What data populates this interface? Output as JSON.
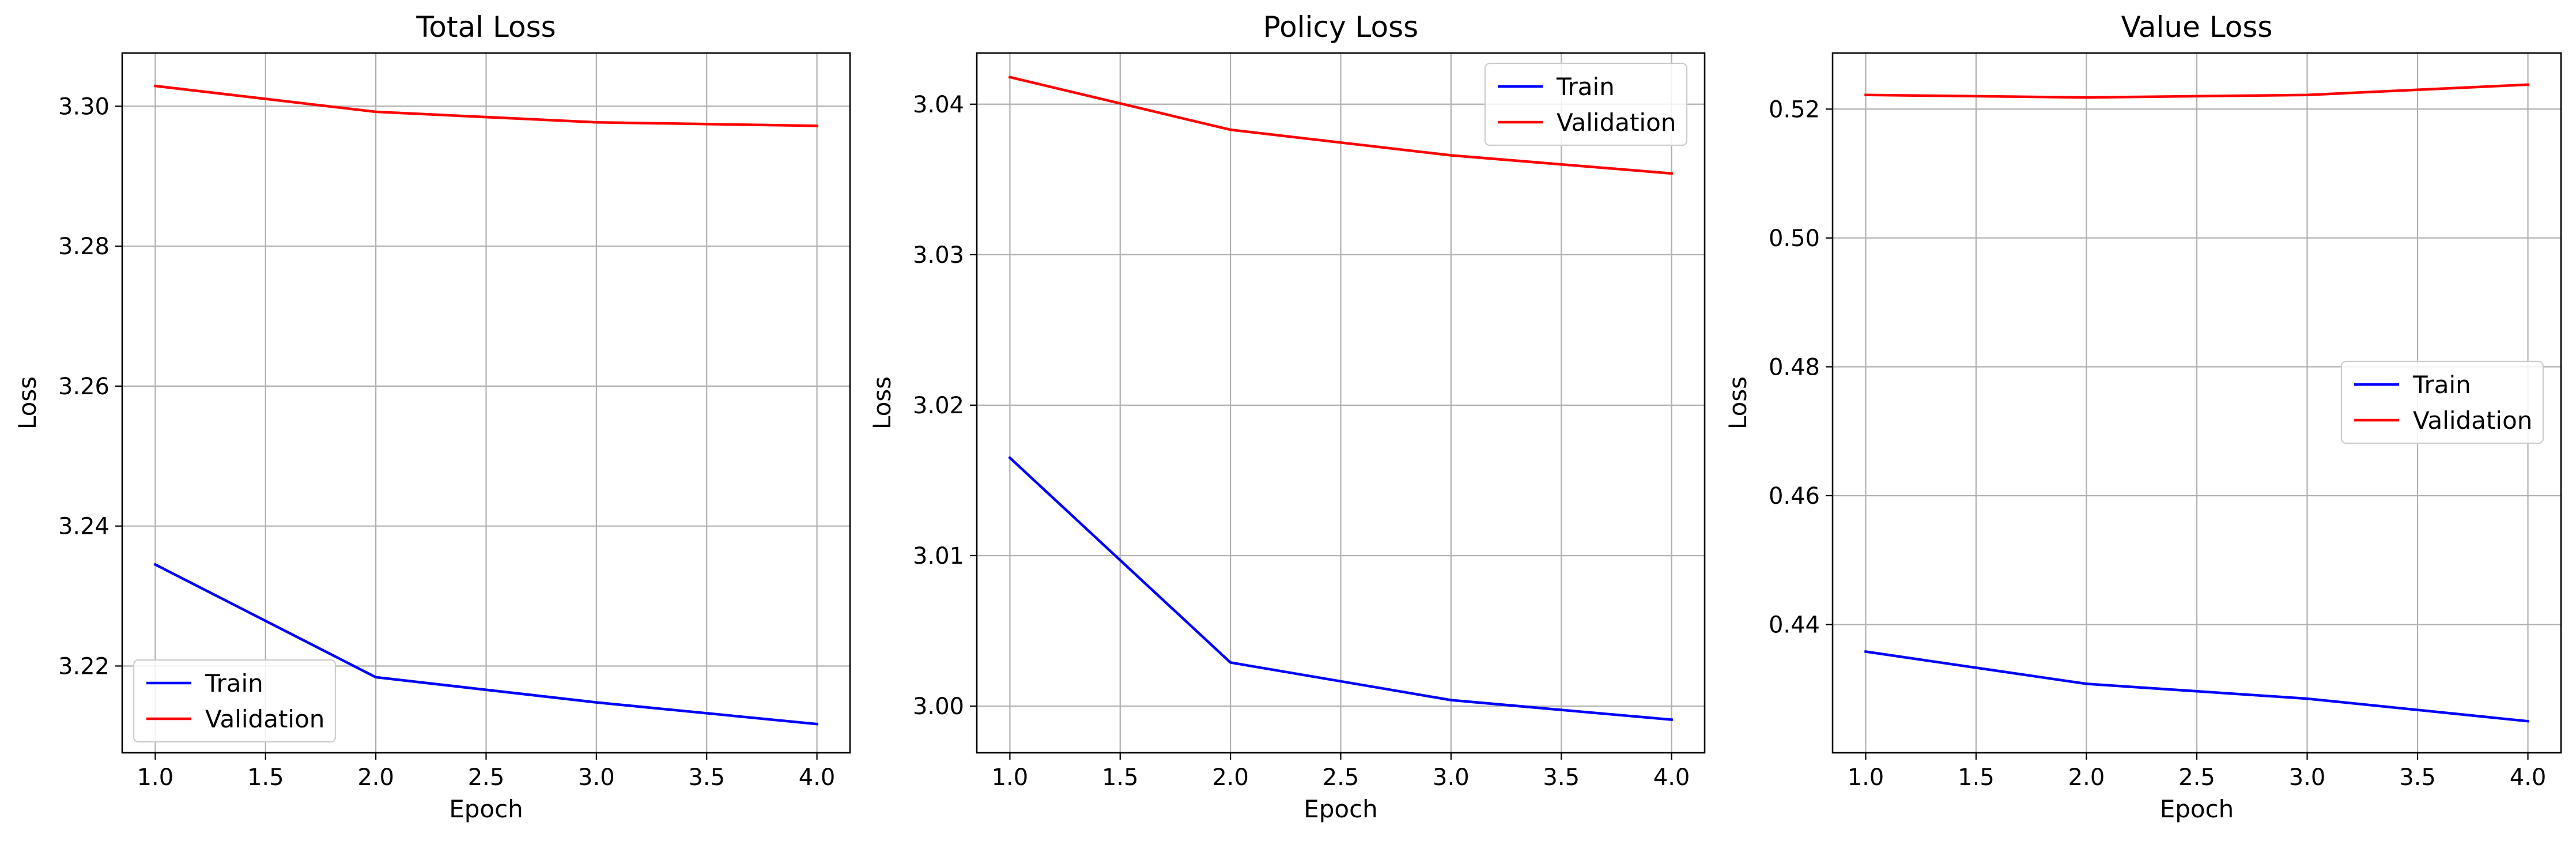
{
  "colors": {
    "train": "#0000ff",
    "validation": "#ff0000",
    "grid": "#b0b0b0",
    "axes": "#000000"
  },
  "chart_data": [
    {
      "type": "line",
      "title": "Total Loss",
      "xlabel": "Epoch",
      "ylabel": "Loss",
      "xlim": [
        0.85,
        4.15
      ],
      "ylim": [
        3.2076,
        3.3076
      ],
      "xticks": [
        1.0,
        1.5,
        2.0,
        2.5,
        3.0,
        3.5,
        4.0
      ],
      "xtick_labels": [
        "1.0",
        "1.5",
        "2.0",
        "2.5",
        "3.0",
        "3.5",
        "4.0"
      ],
      "yticks": [
        3.22,
        3.24,
        3.26,
        3.28,
        3.3
      ],
      "ytick_labels": [
        "3.22",
        "3.24",
        "3.26",
        "3.28",
        "3.30"
      ],
      "grid": true,
      "legend": "lower-left",
      "x": [
        1,
        2,
        3,
        4
      ],
      "series": [
        {
          "name": "Train",
          "color": "#0000ff",
          "values": [
            3.2345,
            3.2184,
            3.2148,
            3.2117
          ]
        },
        {
          "name": "Validation",
          "color": "#ff0000",
          "values": [
            3.3029,
            3.2992,
            3.2977,
            3.2972
          ]
        }
      ]
    },
    {
      "type": "line",
      "title": "Policy Loss",
      "xlabel": "Epoch",
      "ylabel": "Loss",
      "xlim": [
        0.85,
        4.15
      ],
      "ylim": [
        2.9969,
        3.0434
      ],
      "xticks": [
        1.0,
        1.5,
        2.0,
        2.5,
        3.0,
        3.5,
        4.0
      ],
      "xtick_labels": [
        "1.0",
        "1.5",
        "2.0",
        "2.5",
        "3.0",
        "3.5",
        "4.0"
      ],
      "yticks": [
        3.0,
        3.01,
        3.02,
        3.03,
        3.04
      ],
      "ytick_labels": [
        "3.00",
        "3.01",
        "3.02",
        "3.03",
        "3.04"
      ],
      "grid": true,
      "legend": "upper-right",
      "x": [
        1,
        2,
        3,
        4
      ],
      "series": [
        {
          "name": "Train",
          "color": "#0000ff",
          "values": [
            3.0165,
            3.0029,
            3.0004,
            2.9991
          ]
        },
        {
          "name": "Validation",
          "color": "#ff0000",
          "values": [
            3.0418,
            3.0383,
            3.0366,
            3.0354
          ]
        }
      ]
    },
    {
      "type": "line",
      "title": "Value Loss",
      "xlabel": "Epoch",
      "ylabel": "Loss",
      "xlim": [
        0.85,
        4.15
      ],
      "ylim": [
        0.4201,
        0.5287
      ],
      "xticks": [
        1.0,
        1.5,
        2.0,
        2.5,
        3.0,
        3.5,
        4.0
      ],
      "xtick_labels": [
        "1.0",
        "1.5",
        "2.0",
        "2.5",
        "3.0",
        "3.5",
        "4.0"
      ],
      "yticks": [
        0.44,
        0.46,
        0.48,
        0.5,
        0.52
      ],
      "ytick_labels": [
        "0.44",
        "0.46",
        "0.48",
        "0.50",
        "0.52"
      ],
      "grid": true,
      "legend": "center-right",
      "x": [
        1,
        2,
        3,
        4
      ],
      "series": [
        {
          "name": "Train",
          "color": "#0000ff",
          "values": [
            0.4358,
            0.4308,
            0.4285,
            0.425
          ]
        },
        {
          "name": "Validation",
          "color": "#ff0000",
          "values": [
            0.5222,
            0.5218,
            0.5222,
            0.5238
          ]
        }
      ]
    }
  ]
}
